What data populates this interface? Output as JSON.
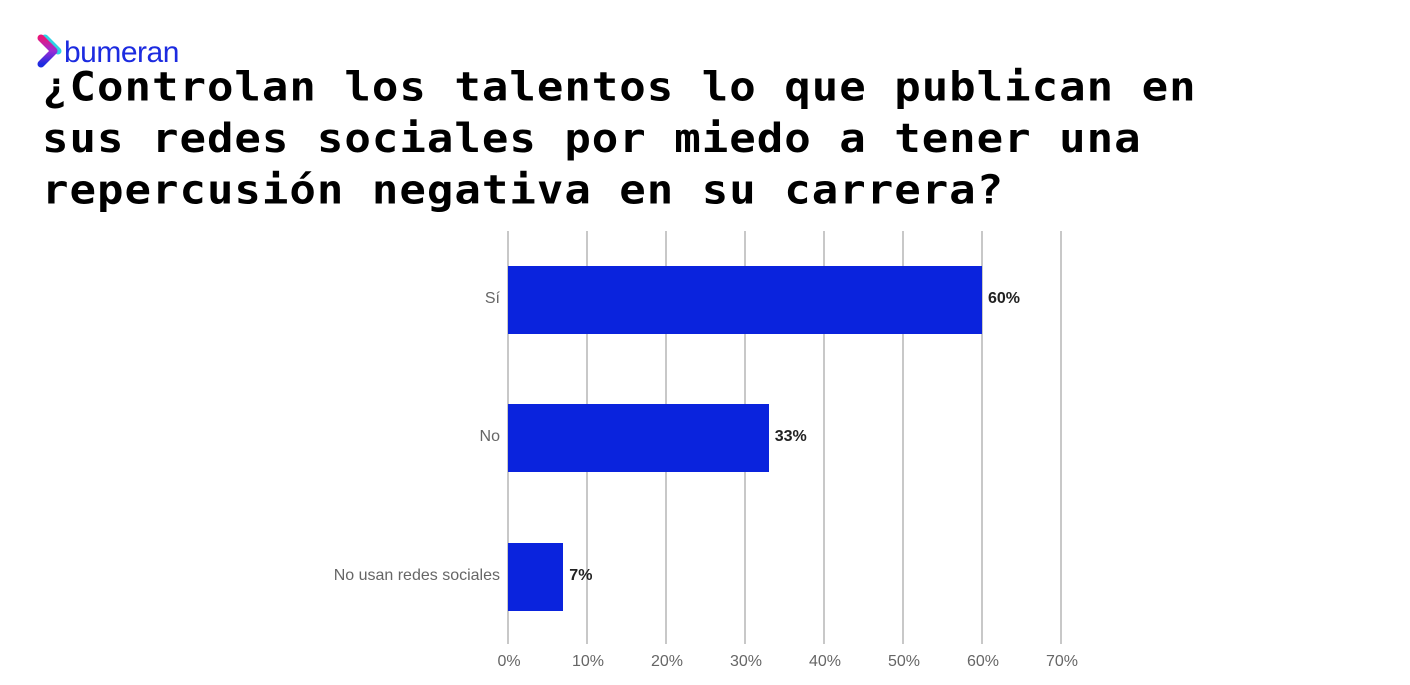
{
  "brand": {
    "name": "bumeran",
    "color": "#1c2be0"
  },
  "title": "¿Controlan los talentos lo que publican en sus redes sociales por miedo a tener una repercusión negativa en su carrera?",
  "chart_data": {
    "type": "bar",
    "orientation": "horizontal",
    "title": "¿Controlan los talentos lo que publican en sus redes sociales por miedo a tener una repercusión negativa en su carrera?",
    "categories": [
      "Sí",
      "No",
      "No usan redes sociales"
    ],
    "values": [
      60,
      33,
      7
    ],
    "value_labels": [
      "60%",
      "33%",
      "7%"
    ],
    "xlabel": "",
    "ylabel": "",
    "xlim": [
      0,
      70
    ],
    "x_ticks": [
      "0%",
      "10%",
      "20%",
      "30%",
      "40%",
      "50%",
      "60%",
      "70%"
    ],
    "grid": true,
    "legend": "none",
    "bar_color": "#0a23dd"
  }
}
